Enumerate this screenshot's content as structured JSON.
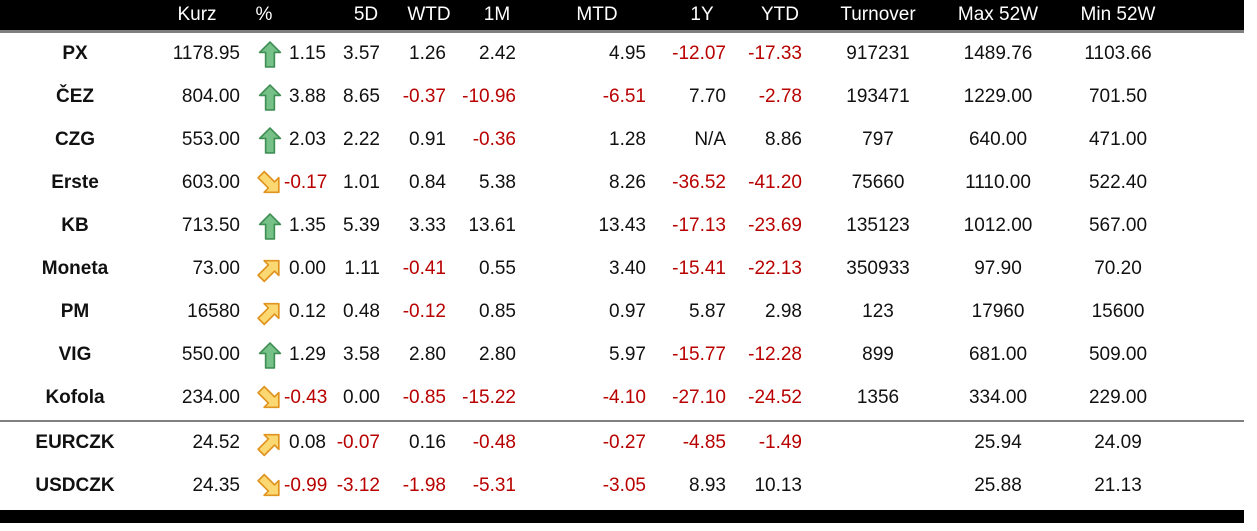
{
  "colors": {
    "negative_text": "#b80000",
    "positive_arrow_fill": "#76c187",
    "positive_arrow_stroke": "#3f8f55",
    "neutral_arrow_fill": "#fcd873",
    "neutral_arrow_stroke": "#e0941f",
    "header_background": "#000000",
    "header_text": "#ffffff"
  },
  "table": {
    "headers": [
      {
        "key": "label",
        "label": ""
      },
      {
        "key": "kurz",
        "label": "Kurz"
      },
      {
        "key": "arrow",
        "label": "%"
      },
      {
        "key": "pct",
        "label": ""
      },
      {
        "key": "d5",
        "label": "5D"
      },
      {
        "key": "wtd",
        "label": "WTD"
      },
      {
        "key": "m1",
        "label": "1M"
      },
      {
        "key": "mtd",
        "label": "MTD"
      },
      {
        "key": "y1",
        "label": "1Y"
      },
      {
        "key": "ytd",
        "label": "YTD"
      },
      {
        "key": "turnover",
        "label": "Turnover"
      },
      {
        "key": "max52w",
        "label": "Max 52W"
      },
      {
        "key": "min52w",
        "label": "Min 52W"
      },
      {
        "key": "spacer",
        "label": ""
      }
    ],
    "rows": [
      {
        "section": "stocks",
        "label": "PX",
        "kurz": "1178.95",
        "arrow": "up",
        "pct": "1.15",
        "d5": "3.57",
        "wtd": "1.26",
        "m1": "2.42",
        "mtd": "4.95",
        "y1": "-12.07",
        "ytd": "-17.33",
        "turnover": "917231",
        "max52w": "1489.76",
        "min52w": "1103.66"
      },
      {
        "section": "stocks",
        "label": "ČEZ",
        "kurz": "804.00",
        "arrow": "up",
        "pct": "3.88",
        "d5": "8.65",
        "wtd": "-0.37",
        "m1": "-10.96",
        "mtd": "-6.51",
        "y1": "7.70",
        "ytd": "-2.78",
        "turnover": "193471",
        "max52w": "1229.00",
        "min52w": "701.50"
      },
      {
        "section": "stocks",
        "label": "CZG",
        "kurz": "553.00",
        "arrow": "up",
        "pct": "2.03",
        "d5": "2.22",
        "wtd": "0.91",
        "m1": "-0.36",
        "mtd": "1.28",
        "y1": "N/A",
        "ytd": "8.86",
        "turnover": "797",
        "max52w": "640.00",
        "min52w": "471.00"
      },
      {
        "section": "stocks",
        "label": "Erste",
        "kurz": "603.00",
        "arrow": "down-right",
        "pct": "-0.17",
        "d5": "1.01",
        "wtd": "0.84",
        "m1": "5.38",
        "mtd": "8.26",
        "y1": "-36.52",
        "ytd": "-41.20",
        "turnover": "75660",
        "max52w": "1110.00",
        "min52w": "522.40"
      },
      {
        "section": "stocks",
        "label": "KB",
        "kurz": "713.50",
        "arrow": "up",
        "pct": "1.35",
        "d5": "5.39",
        "wtd": "3.33",
        "m1": "13.61",
        "mtd": "13.43",
        "y1": "-17.13",
        "ytd": "-23.69",
        "turnover": "135123",
        "max52w": "1012.00",
        "min52w": "567.00"
      },
      {
        "section": "stocks",
        "label": "Moneta",
        "kurz": "73.00",
        "arrow": "up-right",
        "pct": "0.00",
        "d5": "1.11",
        "wtd": "-0.41",
        "m1": "0.55",
        "mtd": "3.40",
        "y1": "-15.41",
        "ytd": "-22.13",
        "turnover": "350933",
        "max52w": "97.90",
        "min52w": "70.20"
      },
      {
        "section": "stocks",
        "label": "PM",
        "kurz": "16580",
        "arrow": "up-right",
        "pct": "0.12",
        "d5": "0.48",
        "wtd": "-0.12",
        "m1": "0.85",
        "mtd": "0.97",
        "y1": "5.87",
        "ytd": "2.98",
        "turnover": "123",
        "max52w": "17960",
        "min52w": "15600"
      },
      {
        "section": "stocks",
        "label": "VIG",
        "kurz": "550.00",
        "arrow": "up",
        "pct": "1.29",
        "d5": "3.58",
        "wtd": "2.80",
        "m1": "2.80",
        "mtd": "5.97",
        "y1": "-15.77",
        "ytd": "-12.28",
        "turnover": "899",
        "max52w": "681.00",
        "min52w": "509.00"
      },
      {
        "section": "stocks",
        "label": "Kofola",
        "kurz": "234.00",
        "arrow": "down-right",
        "pct": "-0.43",
        "d5": "0.00",
        "wtd": "-0.85",
        "m1": "-15.22",
        "mtd": "-4.10",
        "y1": "-27.10",
        "ytd": "-24.52",
        "turnover": "1356",
        "max52w": "334.00",
        "min52w": "229.00"
      },
      {
        "section": "fx",
        "label": "EURCZK",
        "kurz": "24.52",
        "arrow": "up-right",
        "pct": "0.08",
        "d5": "-0.07",
        "wtd": "0.16",
        "m1": "-0.48",
        "mtd": "-0.27",
        "y1": "-4.85",
        "ytd": "-1.49",
        "turnover": "",
        "max52w": "25.94",
        "min52w": "24.09"
      },
      {
        "section": "fx",
        "label": "USDCZK",
        "kurz": "24.35",
        "arrow": "down-right",
        "pct": "-0.99",
        "d5": "-3.12",
        "wtd": "-1.98",
        "m1": "-5.31",
        "mtd": "-3.05",
        "y1": "8.93",
        "ytd": "10.13",
        "turnover": "",
        "max52w": "25.88",
        "min52w": "21.13"
      }
    ]
  }
}
